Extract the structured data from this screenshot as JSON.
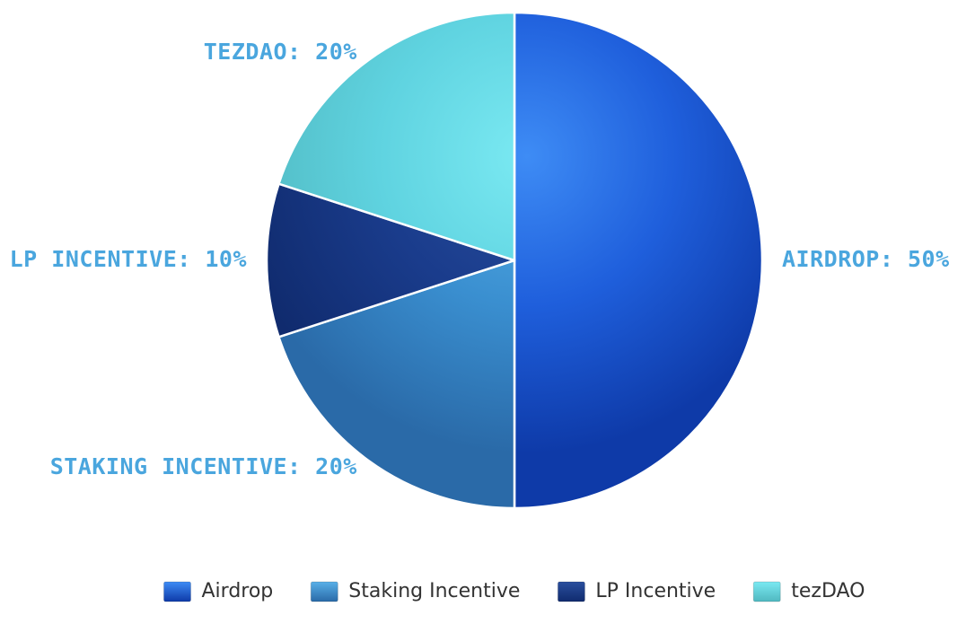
{
  "chart_data": {
    "type": "pie",
    "title": "",
    "categories": [
      "Airdrop",
      "Staking Incentive",
      "LP Incentive",
      "tezDAO"
    ],
    "values": [
      50,
      20,
      10,
      20
    ],
    "unit": "%",
    "data_labels": [
      "AIRDROP: 50%",
      "STAKING INCENTIVE: 20%",
      "LP INCENTIVE: 10%",
      "TEZDAO: 20%"
    ],
    "colors": [
      "#1f5fdc",
      "#3a8fd0",
      "#1a3c8c",
      "#5fd3e0"
    ],
    "highlight_colors": [
      "#3e8cf5",
      "#58b0e8",
      "#2a4f9e",
      "#7ae9f2"
    ],
    "shadow_colors": [
      "#0e3aa8",
      "#2a6aa8",
      "#102b6e",
      "#50b8c0"
    ],
    "label_color": "#4aa6de",
    "legend": {
      "placement": "bottom",
      "items": [
        "Airdrop",
        "Staking Incentive",
        "LP Incentive",
        "tezDAO"
      ]
    }
  }
}
